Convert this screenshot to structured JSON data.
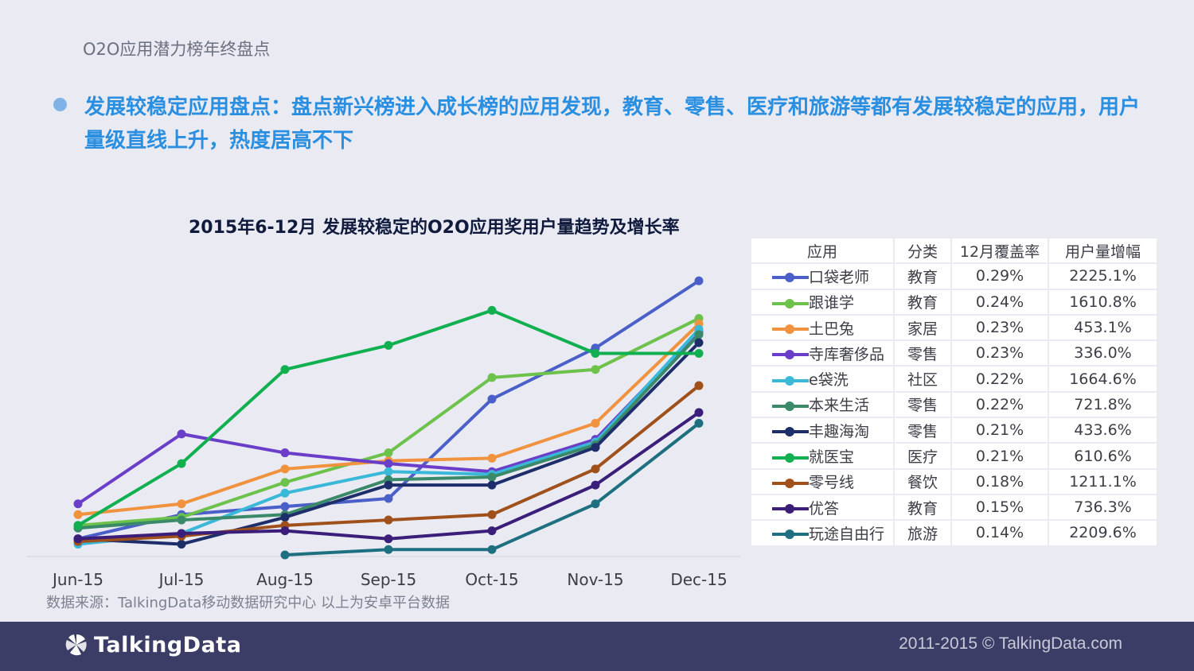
{
  "header": {
    "section_label": "O2O应用潜力榜年终盘点",
    "headline": "发展较稳定应用盘点：盘点新兴榜进入成长榜的应用发现，教育、零售、医疗和旅游等都有发展较稳定的应用，用户量级直线上升，热度居高不下"
  },
  "source_note": "数据来源：TalkingData移动数据研究中心   以上为安卓平台数据",
  "footer": {
    "brand": "TalkingData",
    "copyright": "2011-2015 © TalkingData.com"
  },
  "table": {
    "headers": [
      "应用",
      "分类",
      "12月覆盖率",
      "用户量增幅"
    ],
    "rows": [
      {
        "app": "口袋老师",
        "category": "教育",
        "coverage": "0.29%",
        "growth": "2225.1%",
        "color": "#4a5fc8"
      },
      {
        "app": "跟谁学",
        "category": "教育",
        "coverage": "0.24%",
        "growth": "1610.8%",
        "color": "#6cc24a"
      },
      {
        "app": "土巴兔",
        "category": "家居",
        "coverage": "0.23%",
        "growth": "453.1%",
        "color": "#f0923e"
      },
      {
        "app": "寺库奢侈品",
        "category": "零售",
        "coverage": "0.23%",
        "growth": "336.0%",
        "color": "#6a3ec8"
      },
      {
        "app": "e袋洗",
        "category": "社区",
        "coverage": "0.22%",
        "growth": "1664.6%",
        "color": "#3ab8d8"
      },
      {
        "app": "本来生活",
        "category": "零售",
        "coverage": "0.22%",
        "growth": "721.8%",
        "color": "#3a8a6a"
      },
      {
        "app": "丰趣海淘",
        "category": "零售",
        "coverage": "0.21%",
        "growth": "433.6%",
        "color": "#1e2e6a"
      },
      {
        "app": "就医宝",
        "category": "医疗",
        "coverage": "0.21%",
        "growth": "610.6%",
        "color": "#10b050"
      },
      {
        "app": "零号线",
        "category": "餐饮",
        "coverage": "0.18%",
        "growth": "1211.1%",
        "color": "#a0501a"
      },
      {
        "app": "优答",
        "category": "教育",
        "coverage": "0.15%",
        "growth": "736.3%",
        "color": "#3a1e7a"
      },
      {
        "app": "玩途自由行",
        "category": "旅游",
        "coverage": "0.14%",
        "growth": "2209.6%",
        "color": "#1e7080"
      }
    ]
  },
  "chart_data": {
    "type": "line",
    "title": "2015年6-12月 发展较稳定的O2O应用奖用户量趋势及增长率",
    "categories": [
      "Jun-15",
      "Jul-15",
      "Aug-15",
      "Sep-15",
      "Oct-15",
      "Nov-15",
      "Dec-15"
    ],
    "ylim": [
      0,
      100
    ],
    "grid": false,
    "legend": "table-right",
    "series": [
      {
        "name": "口袋老师",
        "color": "#4a5fc8",
        "values": [
          6,
          15,
          18,
          21,
          58,
          77,
          102
        ]
      },
      {
        "name": "跟谁学",
        "color": "#6cc24a",
        "values": [
          11,
          14,
          27,
          38,
          66,
          69,
          88
        ]
      },
      {
        "name": "土巴兔",
        "color": "#f0923e",
        "values": [
          15,
          19,
          32,
          35,
          36,
          49,
          86
        ]
      },
      {
        "name": "寺库奢侈品",
        "color": "#6a3ec8",
        "values": [
          19,
          45,
          38,
          34,
          31,
          43,
          83
        ]
      },
      {
        "name": "e袋洗",
        "color": "#3ab8d8",
        "values": [
          4,
          8,
          23,
          31,
          30,
          42,
          84
        ]
      },
      {
        "name": "本来生活",
        "color": "#3a8a6a",
        "values": [
          10,
          13,
          15,
          28,
          29,
          41,
          82
        ]
      },
      {
        "name": "丰趣海淘",
        "color": "#1e2e6a",
        "values": [
          6,
          4,
          14,
          26,
          26,
          40,
          79
        ]
      },
      {
        "name": "就医宝",
        "color": "#10b050",
        "values": [
          11,
          34,
          69,
          78,
          91,
          75,
          75
        ]
      },
      {
        "name": "零号线",
        "color": "#a0501a",
        "values": [
          5,
          7,
          11,
          13,
          15,
          32,
          63
        ]
      },
      {
        "name": "优答",
        "color": "#3a1e7a",
        "values": [
          6,
          8,
          9,
          6,
          9,
          26,
          53
        ]
      },
      {
        "name": "玩途自由行",
        "color": "#1e7080",
        "values": [
          null,
          null,
          0,
          2,
          2,
          19,
          49
        ]
      }
    ]
  }
}
